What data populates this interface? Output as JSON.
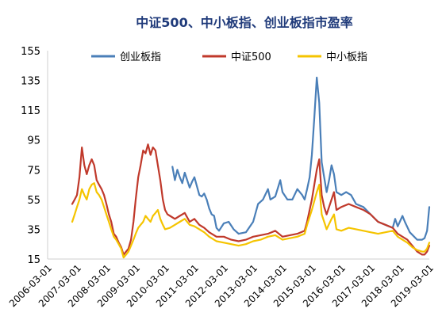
{
  "chart_data": {
    "type": "line",
    "title": "中证500、中小板指、创业板指市盈率",
    "xlabel": "",
    "ylabel": "",
    "ylim": [
      15,
      155
    ],
    "yticks": [
      15,
      35,
      55,
      75,
      95,
      115,
      135,
      155
    ],
    "xlim": [
      "2006-03-01",
      "2019-03-01"
    ],
    "xticks": [
      "2006-03-01",
      "2007-03-01",
      "2008-03-01",
      "2009-03-01",
      "2010-03-01",
      "2011-03-01",
      "2012-03-01",
      "2013-03-01",
      "2014-03-01",
      "2015-03-01",
      "2016-03-01",
      "2017-03-01",
      "2018-03-01",
      "2019-03-01"
    ],
    "grid": false,
    "legend": "top",
    "series": [
      {
        "name": "创业板指",
        "color": "#4a7fb8",
        "points": [
          [
            "2010-06-01",
            77
          ],
          [
            "2010-07-01",
            68
          ],
          [
            "2010-08-01",
            75
          ],
          [
            "2010-09-01",
            70
          ],
          [
            "2010-10-01",
            66
          ],
          [
            "2010-11-01",
            73
          ],
          [
            "2010-12-01",
            68
          ],
          [
            "2011-01-01",
            63
          ],
          [
            "2011-02-01",
            67
          ],
          [
            "2011-03-01",
            70
          ],
          [
            "2011-04-01",
            64
          ],
          [
            "2011-05-01",
            58
          ],
          [
            "2011-06-01",
            57
          ],
          [
            "2011-07-01",
            59
          ],
          [
            "2011-08-01",
            55
          ],
          [
            "2011-09-01",
            49
          ],
          [
            "2011-10-01",
            45
          ],
          [
            "2011-11-01",
            44
          ],
          [
            "2011-12-01",
            36
          ],
          [
            "2012-01-01",
            34
          ],
          [
            "2012-03-01",
            39
          ],
          [
            "2012-05-01",
            40
          ],
          [
            "2012-07-01",
            35
          ],
          [
            "2012-09-01",
            32
          ],
          [
            "2012-12-01",
            33
          ],
          [
            "2013-03-01",
            40
          ],
          [
            "2013-05-01",
            52
          ],
          [
            "2013-07-01",
            55
          ],
          [
            "2013-09-01",
            62
          ],
          [
            "2013-10-01",
            55
          ],
          [
            "2013-12-01",
            57
          ],
          [
            "2014-02-01",
            68
          ],
          [
            "2014-03-01",
            60
          ],
          [
            "2014-05-01",
            55
          ],
          [
            "2014-07-01",
            55
          ],
          [
            "2014-09-01",
            62
          ],
          [
            "2014-11-01",
            58
          ],
          [
            "2014-12-01",
            55
          ],
          [
            "2015-01-01",
            62
          ],
          [
            "2015-02-01",
            70
          ],
          [
            "2015-03-01",
            85
          ],
          [
            "2015-04-01",
            110
          ],
          [
            "2015-05-01",
            137
          ],
          [
            "2015-06-01",
            120
          ],
          [
            "2015-07-01",
            80
          ],
          [
            "2015-08-01",
            70
          ],
          [
            "2015-09-01",
            60
          ],
          [
            "2015-10-01",
            68
          ],
          [
            "2015-11-01",
            78
          ],
          [
            "2015-12-01",
            72
          ],
          [
            "2016-01-01",
            60
          ],
          [
            "2016-03-01",
            58
          ],
          [
            "2016-05-01",
            60
          ],
          [
            "2016-07-01",
            58
          ],
          [
            "2016-09-01",
            52
          ],
          [
            "2016-12-01",
            50
          ],
          [
            "2017-03-01",
            45
          ],
          [
            "2017-06-01",
            40
          ],
          [
            "2017-09-01",
            38
          ],
          [
            "2017-12-01",
            36
          ],
          [
            "2018-01-01",
            42
          ],
          [
            "2018-02-01",
            37
          ],
          [
            "2018-04-01",
            44
          ],
          [
            "2018-05-01",
            40
          ],
          [
            "2018-07-01",
            33
          ],
          [
            "2018-10-01",
            28
          ],
          [
            "2018-12-01",
            28
          ],
          [
            "2019-01-01",
            29
          ],
          [
            "2019-02-01",
            34
          ],
          [
            "2019-03-01",
            50
          ]
        ]
      },
      {
        "name": "中证500",
        "color": "#c0392b",
        "points": [
          [
            "2007-01-01",
            52
          ],
          [
            "2007-02-01",
            55
          ],
          [
            "2007-03-01",
            58
          ],
          [
            "2007-04-01",
            70
          ],
          [
            "2007-05-01",
            90
          ],
          [
            "2007-06-01",
            78
          ],
          [
            "2007-07-01",
            72
          ],
          [
            "2007-08-01",
            78
          ],
          [
            "2007-09-01",
            82
          ],
          [
            "2007-10-01",
            78
          ],
          [
            "2007-11-01",
            68
          ],
          [
            "2007-12-01",
            65
          ],
          [
            "2008-01-01",
            62
          ],
          [
            "2008-02-01",
            58
          ],
          [
            "2008-03-01",
            52
          ],
          [
            "2008-04-01",
            45
          ],
          [
            "2008-05-01",
            40
          ],
          [
            "2008-06-01",
            32
          ],
          [
            "2008-07-01",
            30
          ],
          [
            "2008-08-01",
            26
          ],
          [
            "2008-09-01",
            23
          ],
          [
            "2008-10-01",
            18
          ],
          [
            "2008-11-01",
            20
          ],
          [
            "2008-12-01",
            22
          ],
          [
            "2009-01-01",
            28
          ],
          [
            "2009-02-01",
            40
          ],
          [
            "2009-03-01",
            55
          ],
          [
            "2009-04-01",
            70
          ],
          [
            "2009-05-01",
            78
          ],
          [
            "2009-06-01",
            88
          ],
          [
            "2009-07-01",
            86
          ],
          [
            "2009-08-01",
            92
          ],
          [
            "2009-09-01",
            85
          ],
          [
            "2009-10-01",
            90
          ],
          [
            "2009-11-01",
            88
          ],
          [
            "2009-12-01",
            78
          ],
          [
            "2010-01-01",
            68
          ],
          [
            "2010-02-01",
            55
          ],
          [
            "2010-03-01",
            48
          ],
          [
            "2010-04-01",
            45
          ],
          [
            "2010-05-01",
            44
          ],
          [
            "2010-07-01",
            42
          ],
          [
            "2010-09-01",
            44
          ],
          [
            "2010-11-01",
            46
          ],
          [
            "2011-01-01",
            40
          ],
          [
            "2011-03-01",
            42
          ],
          [
            "2011-05-01",
            38
          ],
          [
            "2011-07-01",
            36
          ],
          [
            "2011-09-01",
            33
          ],
          [
            "2011-12-01",
            30
          ],
          [
            "2012-03-01",
            30
          ],
          [
            "2012-06-01",
            28
          ],
          [
            "2012-09-01",
            27
          ],
          [
            "2012-12-01",
            28
          ],
          [
            "2013-03-01",
            30
          ],
          [
            "2013-06-01",
            31
          ],
          [
            "2013-09-01",
            32
          ],
          [
            "2013-12-01",
            34
          ],
          [
            "2014-03-01",
            30
          ],
          [
            "2014-06-01",
            31
          ],
          [
            "2014-09-01",
            32
          ],
          [
            "2014-12-01",
            34
          ],
          [
            "2015-01-01",
            40
          ],
          [
            "2015-03-01",
            55
          ],
          [
            "2015-05-01",
            75
          ],
          [
            "2015-06-01",
            82
          ],
          [
            "2015-07-01",
            58
          ],
          [
            "2015-08-01",
            50
          ],
          [
            "2015-09-01",
            45
          ],
          [
            "2015-11-01",
            55
          ],
          [
            "2015-12-01",
            60
          ],
          [
            "2016-01-01",
            48
          ],
          [
            "2016-03-01",
            50
          ],
          [
            "2016-06-01",
            52
          ],
          [
            "2016-09-01",
            50
          ],
          [
            "2016-12-01",
            48
          ],
          [
            "2017-03-01",
            45
          ],
          [
            "2017-06-01",
            40
          ],
          [
            "2017-09-01",
            38
          ],
          [
            "2017-12-01",
            36
          ],
          [
            "2018-02-01",
            32
          ],
          [
            "2018-04-01",
            30
          ],
          [
            "2018-06-01",
            28
          ],
          [
            "2018-08-01",
            24
          ],
          [
            "2018-10-01",
            20
          ],
          [
            "2018-12-01",
            18
          ],
          [
            "2019-01-01",
            18
          ],
          [
            "2019-02-01",
            20
          ],
          [
            "2019-03-01",
            24
          ]
        ]
      },
      {
        "name": "中小板指",
        "color": "#f5c400",
        "points": [
          [
            "2007-01-01",
            40
          ],
          [
            "2007-02-01",
            45
          ],
          [
            "2007-03-01",
            50
          ],
          [
            "2007-04-01",
            55
          ],
          [
            "2007-05-01",
            62
          ],
          [
            "2007-06-01",
            58
          ],
          [
            "2007-07-01",
            55
          ],
          [
            "2007-08-01",
            62
          ],
          [
            "2007-09-01",
            65
          ],
          [
            "2007-10-01",
            66
          ],
          [
            "2007-11-01",
            60
          ],
          [
            "2007-12-01",
            58
          ],
          [
            "2008-01-01",
            55
          ],
          [
            "2008-02-01",
            50
          ],
          [
            "2008-03-01",
            45
          ],
          [
            "2008-04-01",
            40
          ],
          [
            "2008-05-01",
            35
          ],
          [
            "2008-06-01",
            30
          ],
          [
            "2008-07-01",
            28
          ],
          [
            "2008-08-01",
            25
          ],
          [
            "2008-09-01",
            22
          ],
          [
            "2008-10-01",
            16
          ],
          [
            "2008-11-01",
            18
          ],
          [
            "2008-12-01",
            20
          ],
          [
            "2009-01-01",
            24
          ],
          [
            "2009-02-01",
            28
          ],
          [
            "2009-03-01",
            32
          ],
          [
            "2009-04-01",
            36
          ],
          [
            "2009-05-01",
            38
          ],
          [
            "2009-06-01",
            40
          ],
          [
            "2009-07-01",
            44
          ],
          [
            "2009-08-01",
            42
          ],
          [
            "2009-09-01",
            40
          ],
          [
            "2009-10-01",
            44
          ],
          [
            "2009-11-01",
            46
          ],
          [
            "2009-12-01",
            48
          ],
          [
            "2010-01-01",
            42
          ],
          [
            "2010-02-01",
            38
          ],
          [
            "2010-03-01",
            35
          ],
          [
            "2010-05-01",
            36
          ],
          [
            "2010-07-01",
            38
          ],
          [
            "2010-09-01",
            40
          ],
          [
            "2010-11-01",
            42
          ],
          [
            "2011-01-01",
            38
          ],
          [
            "2011-03-01",
            37
          ],
          [
            "2011-05-01",
            35
          ],
          [
            "2011-07-01",
            33
          ],
          [
            "2011-09-01",
            30
          ],
          [
            "2011-12-01",
            27
          ],
          [
            "2012-03-01",
            26
          ],
          [
            "2012-06-01",
            25
          ],
          [
            "2012-09-01",
            24
          ],
          [
            "2012-12-01",
            25
          ],
          [
            "2013-03-01",
            27
          ],
          [
            "2013-06-01",
            28
          ],
          [
            "2013-09-01",
            30
          ],
          [
            "2013-12-01",
            31
          ],
          [
            "2014-03-01",
            28
          ],
          [
            "2014-06-01",
            29
          ],
          [
            "2014-09-01",
            30
          ],
          [
            "2014-12-01",
            32
          ],
          [
            "2015-01-01",
            38
          ],
          [
            "2015-03-01",
            48
          ],
          [
            "2015-05-01",
            60
          ],
          [
            "2015-06-01",
            65
          ],
          [
            "2015-07-01",
            45
          ],
          [
            "2015-08-01",
            40
          ],
          [
            "2015-09-01",
            35
          ],
          [
            "2015-11-01",
            42
          ],
          [
            "2015-12-01",
            45
          ],
          [
            "2016-01-01",
            35
          ],
          [
            "2016-03-01",
            34
          ],
          [
            "2016-06-01",
            36
          ],
          [
            "2016-09-01",
            35
          ],
          [
            "2016-12-01",
            34
          ],
          [
            "2017-03-01",
            33
          ],
          [
            "2017-06-01",
            32
          ],
          [
            "2017-09-01",
            33
          ],
          [
            "2017-12-01",
            34
          ],
          [
            "2018-02-01",
            30
          ],
          [
            "2018-04-01",
            28
          ],
          [
            "2018-06-01",
            26
          ],
          [
            "2018-08-01",
            23
          ],
          [
            "2018-10-01",
            21
          ],
          [
            "2018-12-01",
            20
          ],
          [
            "2019-01-01",
            20
          ],
          [
            "2019-02-01",
            22
          ],
          [
            "2019-03-01",
            26
          ]
        ]
      }
    ]
  }
}
